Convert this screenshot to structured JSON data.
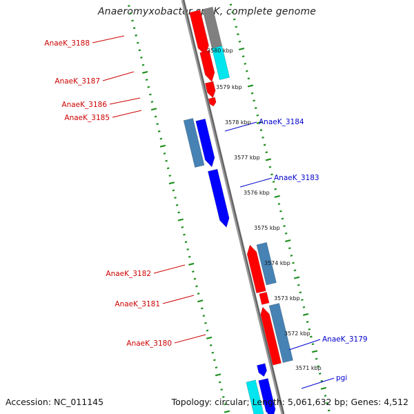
{
  "title": "Anaeromyxobacter sp. K, complete genome",
  "footer": {
    "accession": "Accession: NC_011145",
    "topology": "Topology: circular; Length: 5,061,632 bp; Genes: 4,512"
  },
  "colors": {
    "red": "#ff0000",
    "blue": "#0000ff",
    "steelblue": "#4682b4",
    "cyan": "#00e5ee",
    "gray": "#808080",
    "backbone": "#777777",
    "ticks": "#1f8f1f",
    "label_red": "#cc0000",
    "label_blue": "#0000cc"
  },
  "scale": {
    "ticks": [
      {
        "label": "3580 kbp"
      },
      {
        "label": "3579 kbp"
      },
      {
        "label": "3578 kbp"
      },
      {
        "label": "3577 kbp"
      },
      {
        "label": "3576 kbp"
      },
      {
        "label": "3575 kbp"
      },
      {
        "label": "3574 kbp"
      },
      {
        "label": "3573 kbp"
      },
      {
        "label": "3572 kbp"
      },
      {
        "label": "3571 kbp"
      }
    ]
  },
  "genes": {
    "left": [
      {
        "label": "AnaeK_3188"
      },
      {
        "label": "AnaeK_3187"
      },
      {
        "label": "AnaeK_3186"
      },
      {
        "label": "AnaeK_3185"
      },
      {
        "label": "AnaeK_3182"
      },
      {
        "label": "AnaeK_3181"
      },
      {
        "label": "AnaeK_3180"
      }
    ],
    "right": [
      {
        "label": "AnaeK_3184"
      },
      {
        "label": "AnaeK_3183"
      },
      {
        "label": "AnaeK_3179"
      },
      {
        "label": "pgi"
      }
    ]
  }
}
